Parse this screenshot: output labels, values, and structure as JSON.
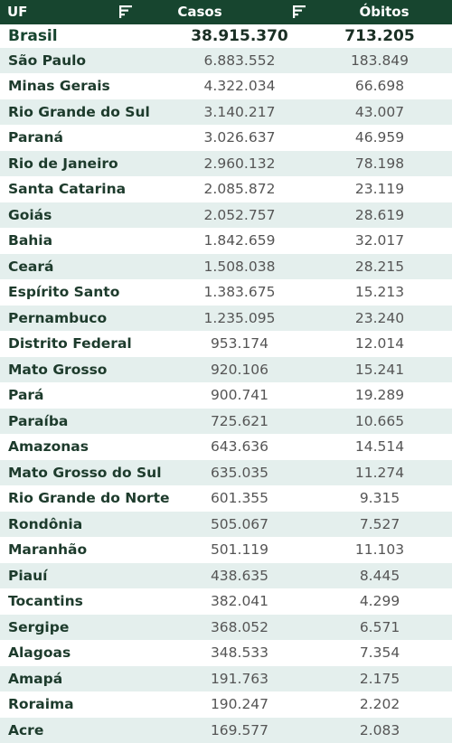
{
  "header": {
    "uf_label": "UF",
    "casos_label": "Casos",
    "obitos_label": "Óbitos",
    "sort_icon": "sort-filter-icon"
  },
  "total": {
    "uf": "Brasil",
    "casos": "38.915.370",
    "obitos": "713.205"
  },
  "rows": [
    {
      "uf": "São Paulo",
      "casos": "6.883.552",
      "obitos": "183.849"
    },
    {
      "uf": "Minas Gerais",
      "casos": "4.322.034",
      "obitos": "66.698"
    },
    {
      "uf": "Rio Grande do Sul",
      "casos": "3.140.217",
      "obitos": "43.007"
    },
    {
      "uf": "Paraná",
      "casos": "3.026.637",
      "obitos": "46.959"
    },
    {
      "uf": "Rio de Janeiro",
      "casos": "2.960.132",
      "obitos": "78.198"
    },
    {
      "uf": "Santa Catarina",
      "casos": "2.085.872",
      "obitos": "23.119"
    },
    {
      "uf": "Goiás",
      "casos": "2.052.757",
      "obitos": "28.619"
    },
    {
      "uf": "Bahia",
      "casos": "1.842.659",
      "obitos": "32.017"
    },
    {
      "uf": "Ceará",
      "casos": "1.508.038",
      "obitos": "28.215"
    },
    {
      "uf": "Espírito Santo",
      "casos": "1.383.675",
      "obitos": "15.213"
    },
    {
      "uf": "Pernambuco",
      "casos": "1.235.095",
      "obitos": "23.240"
    },
    {
      "uf": "Distrito Federal",
      "casos": "953.174",
      "obitos": "12.014"
    },
    {
      "uf": "Mato Grosso",
      "casos": "920.106",
      "obitos": "15.241"
    },
    {
      "uf": "Pará",
      "casos": "900.741",
      "obitos": "19.289"
    },
    {
      "uf": "Paraíba",
      "casos": "725.621",
      "obitos": "10.665"
    },
    {
      "uf": "Amazonas",
      "casos": "643.636",
      "obitos": "14.514"
    },
    {
      "uf": "Mato Grosso do Sul",
      "casos": "635.035",
      "obitos": "11.274"
    },
    {
      "uf": "Rio Grande do Norte",
      "casos": "601.355",
      "obitos": "9.315"
    },
    {
      "uf": "Rondônia",
      "casos": "505.067",
      "obitos": "7.527"
    },
    {
      "uf": "Maranhão",
      "casos": "501.119",
      "obitos": "11.103"
    },
    {
      "uf": "Piauí",
      "casos": "438.635",
      "obitos": "8.445"
    },
    {
      "uf": "Tocantins",
      "casos": "382.041",
      "obitos": "4.299"
    },
    {
      "uf": "Sergipe",
      "casos": "368.052",
      "obitos": "6.571"
    },
    {
      "uf": "Alagoas",
      "casos": "348.533",
      "obitos": "7.354"
    },
    {
      "uf": "Amapá",
      "casos": "191.763",
      "obitos": "2.175"
    },
    {
      "uf": "Roraima",
      "casos": "190.247",
      "obitos": "2.202"
    },
    {
      "uf": "Acre",
      "casos": "169.577",
      "obitos": "2.083"
    }
  ]
}
